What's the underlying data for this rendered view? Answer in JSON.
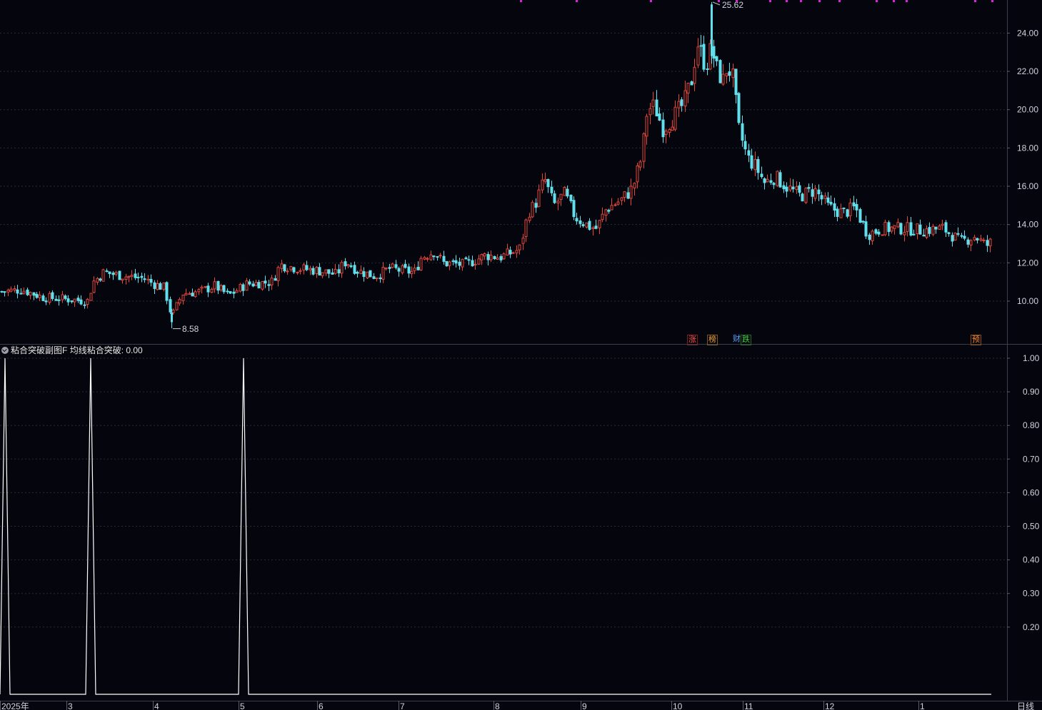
{
  "chart_data": {
    "type": "candlestick",
    "price_axis": {
      "ticks": [
        "24.00",
        "22.00",
        "20.00",
        "18.00",
        "16.00",
        "14.00",
        "12.00",
        "10.00"
      ],
      "ylim": [
        7.8,
        25.7
      ]
    },
    "annotations": {
      "high": "25.62",
      "low": "8.58"
    },
    "event_tags": [
      {
        "text": "涨",
        "color": "#ff5050"
      },
      {
        "text": "榜",
        "color": "#f0a030"
      },
      {
        "text": "财",
        "color": "#5aa0ff"
      },
      {
        "text": "跌",
        "color": "#40d040"
      },
      {
        "text": "预",
        "color": "#ff8c2a"
      }
    ],
    "x_axis": {
      "labels": [
        "2025年",
        "3",
        "4",
        "5",
        "6",
        "7",
        "8",
        "9",
        "10",
        "11",
        "12",
        "1"
      ],
      "period": "日线"
    },
    "indicator": {
      "name": "粘合突破副图F",
      "series_label": "均线粘合突破:",
      "value": "0.00",
      "ticks": [
        "1.00",
        "0.90",
        "0.80",
        "0.70",
        "0.60",
        "0.50",
        "0.40",
        "0.30",
        "0.20"
      ],
      "ylim": [
        0,
        1
      ],
      "spikes": [
        1,
        1,
        1
      ]
    },
    "up_color": "#e5453a",
    "down_color": "#5fe0ec"
  }
}
